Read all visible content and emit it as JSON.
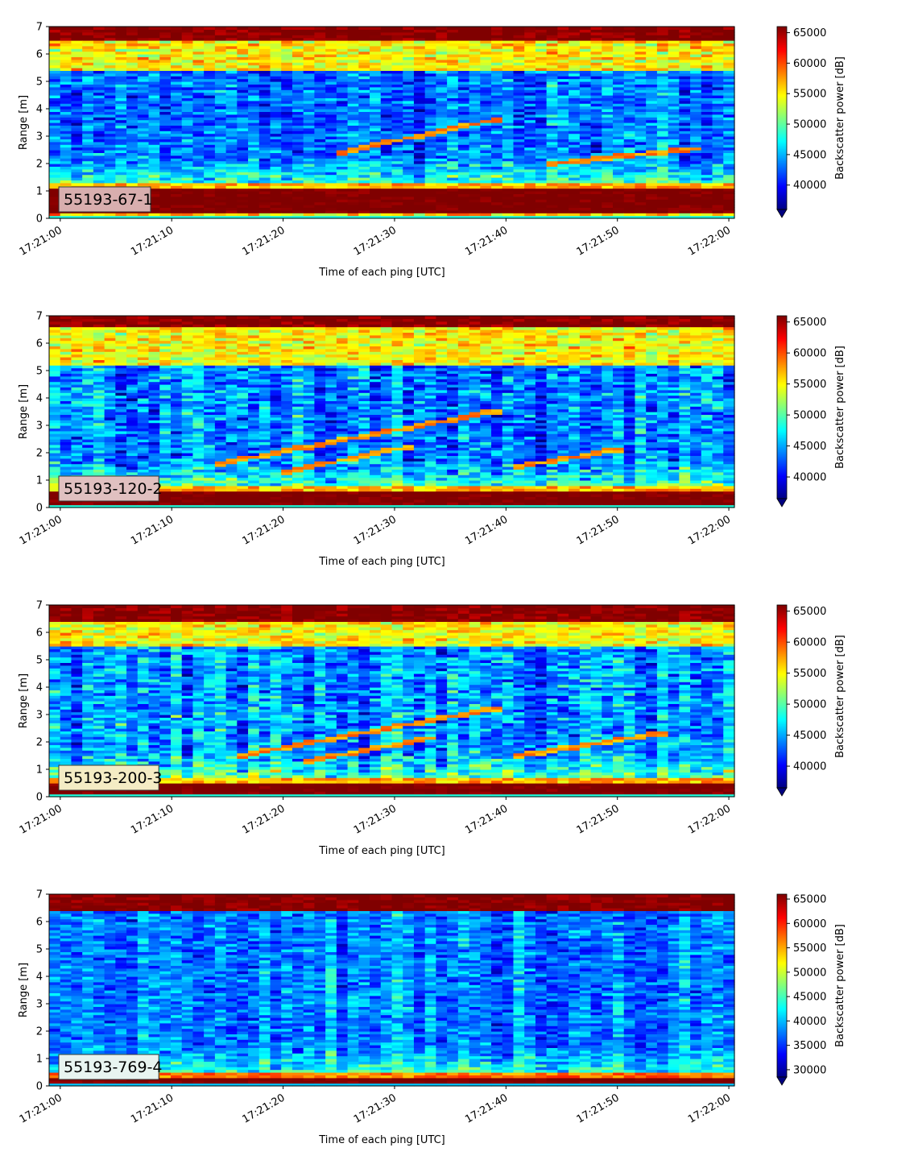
{
  "chart_data": [
    {
      "type": "heatmap",
      "label": "55193-67-1",
      "label_box_color": "#d8aeae",
      "xlabel": "Time of each ping [UTC]",
      "ylabel": "Range [m]",
      "colorbar_label": "Backscatter power [dB]",
      "x_ticks": [
        "17:21:00",
        "17:21:10",
        "17:21:20",
        "17:21:30",
        "17:21:40",
        "17:21:50",
        "17:22:00"
      ],
      "y_ticks": [
        "0",
        "1",
        "2",
        "3",
        "4",
        "5",
        "6",
        "7"
      ],
      "ylim": [
        0,
        7
      ],
      "xlim_seconds": [
        -1,
        60.5
      ],
      "colorbar_ticks": [
        "40000",
        "45000",
        "50000",
        "55000",
        "60000",
        "65000"
      ],
      "colorbar_range": [
        36000,
        66000
      ],
      "colorbar_extend": "min",
      "colormap": "jet",
      "profile": {
        "bottom_band": [
          0.25,
          1.1
        ],
        "mid_level": 43000,
        "upper_band_start": 5.4,
        "top_band_start": 6.5,
        "noise": 6000
      },
      "tracks": [
        {
          "t_start": 25,
          "r_start": 2.4,
          "t_end": 40,
          "r_end": 3.7
        },
        {
          "t_start": 44,
          "r_start": 2.0,
          "t_end": 58,
          "r_end": 2.6
        }
      ]
    },
    {
      "type": "heatmap",
      "label": "55193-120-2",
      "label_box_color": "#e0c0c0",
      "xlabel": "Time of each ping [UTC]",
      "ylabel": "Range [m]",
      "colorbar_label": "Backscatter power [dB]",
      "x_ticks": [
        "17:21:00",
        "17:21:10",
        "17:21:20",
        "17:21:30",
        "17:21:40",
        "17:21:50",
        "17:22:00"
      ],
      "y_ticks": [
        "0",
        "1",
        "2",
        "3",
        "4",
        "5",
        "6",
        "7"
      ],
      "ylim": [
        0,
        7
      ],
      "xlim_seconds": [
        -1,
        60.5
      ],
      "colorbar_ticks": [
        "40000",
        "45000",
        "50000",
        "55000",
        "60000",
        "65000"
      ],
      "colorbar_range": [
        36500,
        66000
      ],
      "colorbar_extend": "min",
      "colormap": "jet",
      "profile": {
        "bottom_band": [
          0.15,
          0.55
        ],
        "mid_level": 44000,
        "upper_band_start": 5.2,
        "top_band_start": 6.6,
        "noise": 6500
      },
      "tracks": [
        {
          "t_start": 14,
          "r_start": 1.6,
          "t_end": 40,
          "r_end": 3.6
        },
        {
          "t_start": 20,
          "r_start": 1.3,
          "t_end": 32,
          "r_end": 2.3
        },
        {
          "t_start": 41,
          "r_start": 1.5,
          "t_end": 51,
          "r_end": 2.2
        }
      ]
    },
    {
      "type": "heatmap",
      "label": "55193-200-3",
      "label_box_color": "#f4ecc4",
      "xlabel": "Time of each ping [UTC]",
      "ylabel": "Range [m]",
      "colorbar_label": "Backscatter power [dB]",
      "x_ticks": [
        "17:21:00",
        "17:21:10",
        "17:21:20",
        "17:21:30",
        "17:21:40",
        "17:21:50",
        "17:22:00"
      ],
      "y_ticks": [
        "0",
        "1",
        "2",
        "3",
        "4",
        "5",
        "6",
        "7"
      ],
      "ylim": [
        0,
        7
      ],
      "xlim_seconds": [
        -1,
        60.5
      ],
      "colorbar_ticks": [
        "40000",
        "45000",
        "50000",
        "55000",
        "60000",
        "65000"
      ],
      "colorbar_range": [
        36500,
        66000
      ],
      "colorbar_extend": "min",
      "colormap": "jet",
      "profile": {
        "bottom_band": [
          0.15,
          0.45
        ],
        "mid_level": 44500,
        "upper_band_start": 5.5,
        "top_band_start": 6.4,
        "noise": 6500
      },
      "tracks": [
        {
          "t_start": 16,
          "r_start": 1.5,
          "t_end": 40,
          "r_end": 3.3
        },
        {
          "t_start": 22,
          "r_start": 1.3,
          "t_end": 34,
          "r_end": 2.2
        },
        {
          "t_start": 41,
          "r_start": 1.5,
          "t_end": 55,
          "r_end": 2.4
        }
      ]
    },
    {
      "type": "heatmap",
      "label": "55193-769-4",
      "label_box_color": "#e8f4f0",
      "xlabel": "Time of each ping [UTC]",
      "ylabel": "Range [m]",
      "colorbar_label": "Backscatter power [dB]",
      "x_ticks": [
        "17:21:00",
        "17:21:10",
        "17:21:20",
        "17:21:30",
        "17:21:40",
        "17:21:50",
        "17:22:00"
      ],
      "y_ticks": [
        "0",
        "1",
        "2",
        "3",
        "4",
        "5",
        "6",
        "7"
      ],
      "ylim": [
        0,
        7
      ],
      "xlim_seconds": [
        -1,
        60.5
      ],
      "colorbar_ticks": [
        "30000",
        "35000",
        "40000",
        "45000",
        "50000",
        "55000",
        "60000",
        "65000"
      ],
      "colorbar_range": [
        28500,
        66000
      ],
      "colorbar_extend": "min",
      "colormap": "jet",
      "profile": {
        "bottom_band": [
          0.15,
          0.3
        ],
        "mid_level": 38000,
        "upper_band_start": 6.9,
        "top_band_start": 6.4,
        "noise": 6500
      },
      "tracks": []
    }
  ]
}
